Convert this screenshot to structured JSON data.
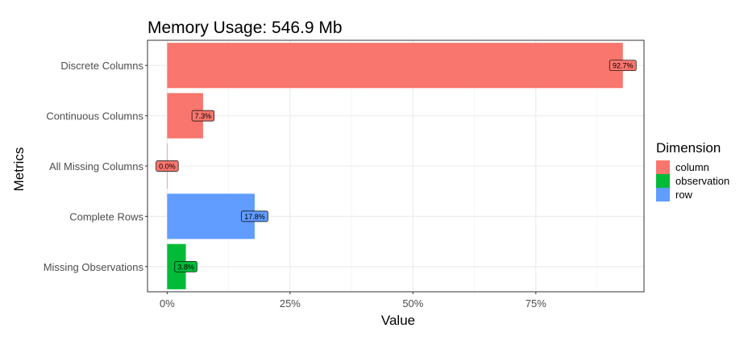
{
  "chart_data": {
    "type": "bar",
    "orientation": "horizontal",
    "title": "Memory Usage: 546.9 Mb",
    "xlabel": "Value",
    "ylabel": "Metrics",
    "xlim": [
      -0.04,
      0.97
    ],
    "x_ticks": [
      0,
      0.25,
      0.5,
      0.75
    ],
    "x_tick_labels": [
      "0%",
      "25%",
      "50%",
      "75%"
    ],
    "grid": true,
    "legend_position": "right",
    "legend_title": "Dimension",
    "legend": [
      {
        "name": "column",
        "color": "#F8766D"
      },
      {
        "name": "observation",
        "color": "#00BA38"
      },
      {
        "name": "row",
        "color": "#619CFF"
      }
    ],
    "bars": [
      {
        "category": "Discrete Columns",
        "value": 0.927,
        "label": "92.7%",
        "dimension": "column"
      },
      {
        "category": "Continuous Columns",
        "value": 0.073,
        "label": "7.3%",
        "dimension": "column"
      },
      {
        "category": "All Missing Columns",
        "value": 0.0,
        "label": "0.0%",
        "dimension": "column"
      },
      {
        "category": "Complete Rows",
        "value": 0.178,
        "label": "17.8%",
        "dimension": "row"
      },
      {
        "category": "Missing Observations",
        "value": 0.038,
        "label": "3.8%",
        "dimension": "observation"
      }
    ]
  }
}
